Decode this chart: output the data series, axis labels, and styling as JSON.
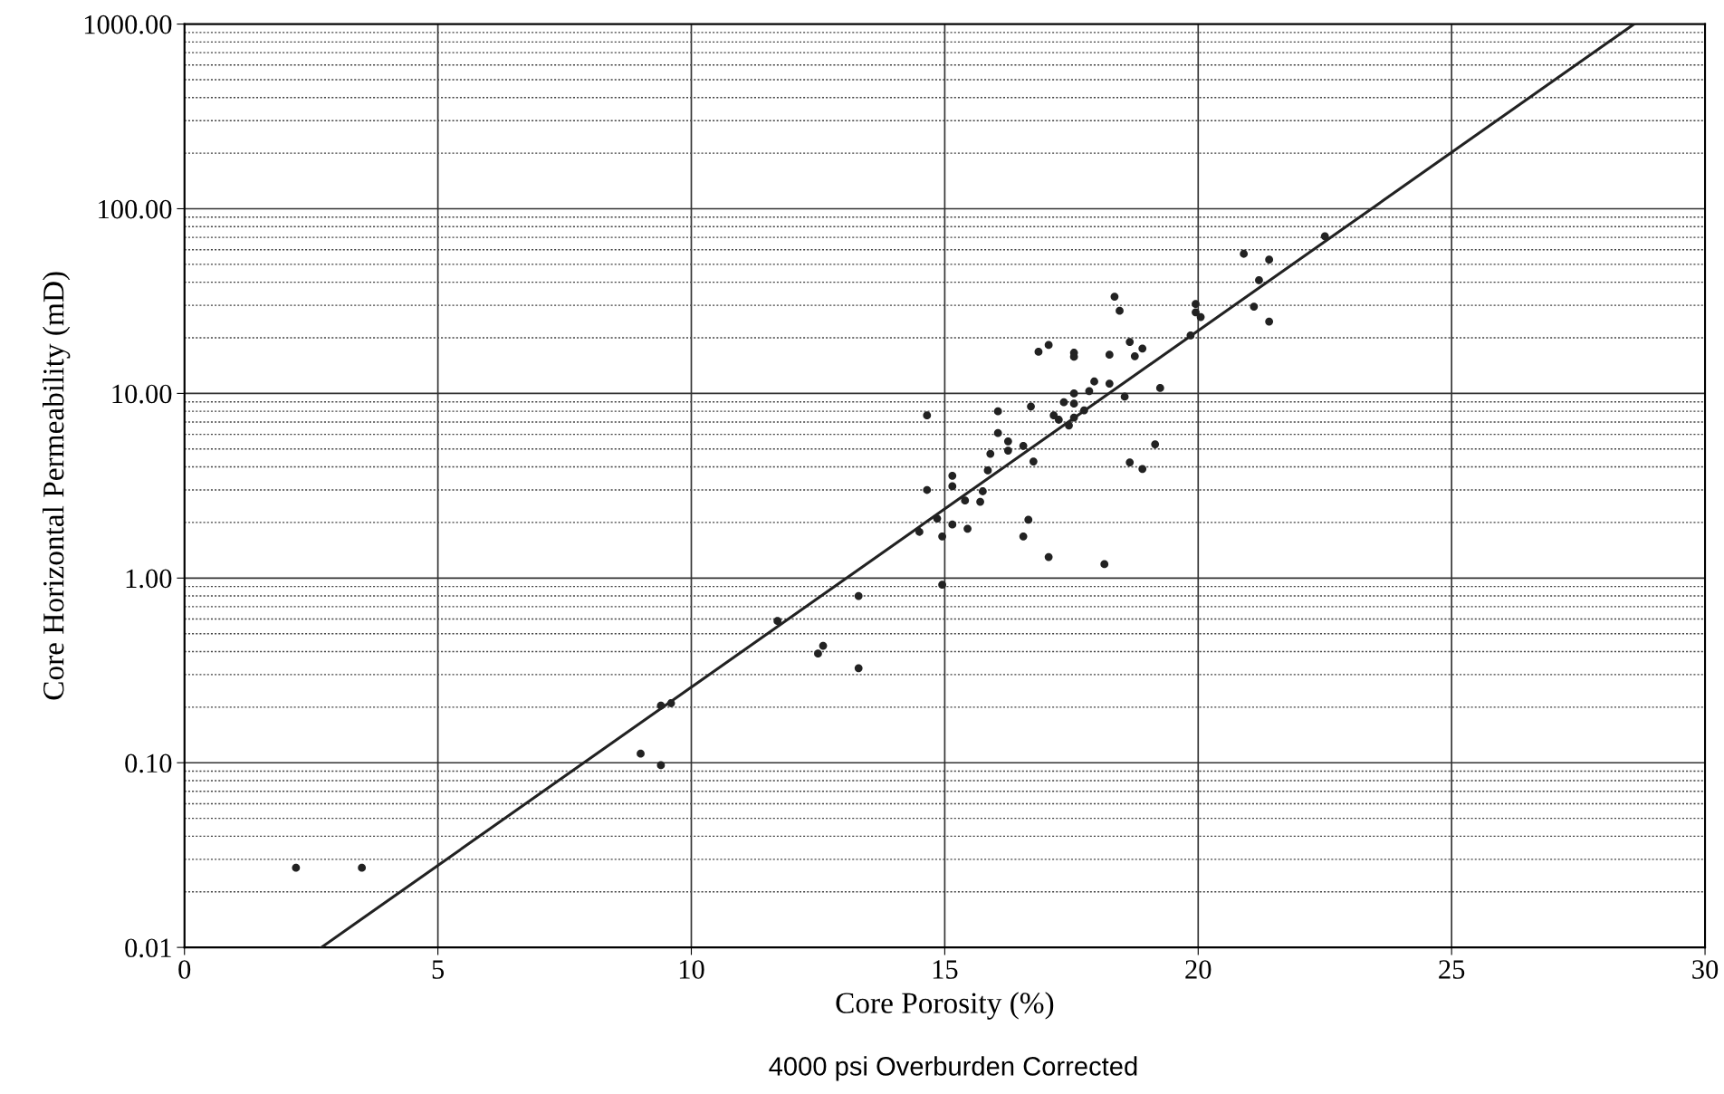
{
  "chart_data": {
    "type": "scatter",
    "xlabel": "Core Porosity (%)",
    "ylabel": "Core Horizontal Permeability (mD)",
    "annotations": [
      "4000 psi Overburden Corrected"
    ],
    "log": "y",
    "grid": true,
    "marker": "circle",
    "xlim": [
      0,
      30
    ],
    "xticks": [
      0,
      5,
      10,
      15,
      20,
      25,
      30
    ],
    "ylim": [
      0.01,
      1000
    ],
    "yticks": [
      {
        "value": 0.01,
        "label": "0.01"
      },
      {
        "value": 0.1,
        "label": "0.10"
      },
      {
        "value": 1,
        "label": "1.00"
      },
      {
        "value": 10,
        "label": "10.00"
      },
      {
        "value": 100,
        "label": "100.00"
      },
      {
        "value": 1000,
        "label": "1000.00"
      }
    ],
    "series": [
      {
        "color": "#222222",
        "x": [
          2.2,
          3.5,
          9.0,
          9.4,
          9.6,
          9.4,
          11.7,
          12.6,
          12.5,
          13.3,
          13.3,
          14.5,
          14.65,
          14.65,
          14.85,
          14.95,
          14.95,
          15.15,
          15.15,
          15.15,
          15.4,
          15.45,
          15.7,
          15.75,
          15.85,
          15.9,
          16.05,
          16.05,
          16.25,
          16.25,
          16.55,
          16.55,
          16.65,
          16.7,
          16.75,
          16.85,
          17.05,
          17.05,
          17.15,
          17.25,
          17.35,
          17.45,
          17.55,
          17.55,
          17.55,
          17.55,
          17.55,
          17.75,
          17.85,
          17.95,
          18.15,
          18.25,
          18.25,
          18.35,
          18.45,
          18.55,
          18.65,
          18.65,
          18.75,
          18.9,
          18.9,
          19.15,
          19.25,
          19.85,
          19.95,
          19.95,
          20.05,
          20.9,
          21.1,
          21.2,
          21.4,
          21.4,
          22.5
        ],
        "values": [
          0.027,
          0.027,
          0.112,
          0.204,
          0.21,
          0.097,
          0.586,
          0.43,
          0.39,
          0.8,
          0.325,
          1.78,
          3.0,
          7.6,
          2.1,
          1.68,
          0.92,
          3.58,
          3.14,
          1.95,
          2.63,
          1.85,
          2.59,
          2.95,
          3.83,
          4.71,
          8.0,
          6.1,
          5.5,
          4.9,
          5.2,
          1.68,
          2.07,
          8.5,
          4.28,
          16.8,
          18.3,
          1.3,
          7.6,
          7.2,
          8.95,
          6.7,
          16.6,
          15.8,
          7.4,
          10,
          8.8,
          8.1,
          10.3,
          11.6,
          1.19,
          16.2,
          11.3,
          33.4,
          28.0,
          9.6,
          4.23,
          19,
          15.9,
          17.5,
          3.9,
          5.3,
          10.7,
          20.6,
          30.5,
          27.5,
          25.9,
          57,
          29.5,
          41,
          53,
          24.5,
          71
        ]
      },
      {
        "color": "#222222",
        "type": "line",
        "marker": "none",
        "x": [
          2.7,
          28.6
        ],
        "values": [
          0.01,
          1000
        ]
      }
    ]
  }
}
